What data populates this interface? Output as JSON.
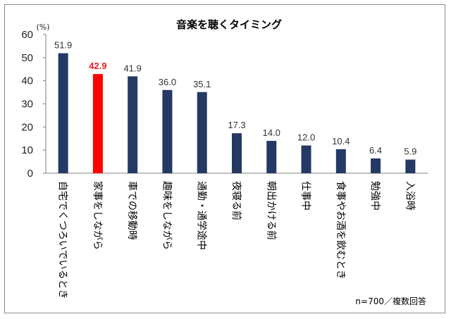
{
  "chart_data": {
    "type": "bar",
    "title": "音楽を聴くタイミング",
    "unit_label": "(%)",
    "note": "n=700／複数回答",
    "ylim": [
      0,
      60
    ],
    "yticks": [
      "0",
      "10",
      "20",
      "30",
      "40",
      "50",
      "60"
    ],
    "categories": [
      "自宅でくつろいでいるとき",
      "家事をしながら",
      "車での移動時",
      "趣味をしながら",
      "通勤・通学途中",
      "夜寝る前",
      "朝出かける前",
      "仕事中",
      "食事やお酒を飲むとき",
      "勉強中",
      "入浴時"
    ],
    "values": [
      51.9,
      42.9,
      41.9,
      36.0,
      35.1,
      17.3,
      14.0,
      12.0,
      10.4,
      6.4,
      5.9
    ],
    "value_labels": [
      "51.9",
      "42.9",
      "41.9",
      "36.0",
      "35.1",
      "17.3",
      "14.0",
      "12.0",
      "10.4",
      "6.4",
      "5.9"
    ],
    "highlight_index": 1,
    "colors": {
      "bar": "#243a64",
      "highlight": "#ff0000",
      "highlight_label": "#e8181e",
      "axis": "#7f7f7f"
    },
    "grid": false,
    "legend": "none"
  }
}
